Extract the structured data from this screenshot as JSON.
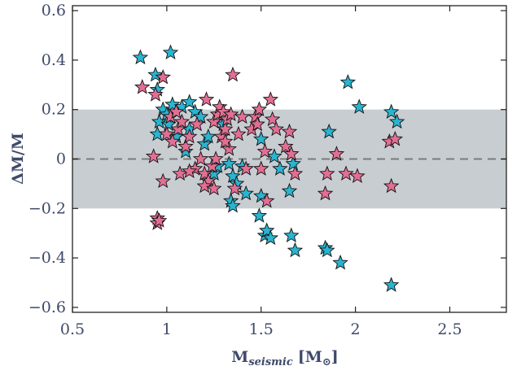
{
  "chart_data": {
    "type": "scatter",
    "title": "",
    "xlabel": {
      "main": "M",
      "sub": "seismic",
      "unit": "[M",
      "sun": "⊙",
      "close": "]"
    },
    "ylabel": "ΔM/M",
    "xlim": [
      0.5,
      2.8
    ],
    "ylim": [
      -0.62,
      0.62
    ],
    "xticks": [
      0.5,
      1,
      1.5,
      2,
      2.5
    ],
    "xtick_labels": [
      "0.5",
      "1",
      "1.5",
      "2",
      "2.5"
    ],
    "yticks": [
      -0.6,
      -0.4,
      -0.2,
      0,
      0.2,
      0.4,
      0.6
    ],
    "ytick_labels": [
      "−0.6",
      "−0.4",
      "−0.2",
      "0",
      "0.2",
      "0.4",
      "0.6"
    ],
    "band": [
      -0.2,
      0.2
    ],
    "reference_line": 0,
    "grid": false,
    "colors": {
      "cyan": "#2ab4cf",
      "pink": "#e26f93",
      "band": "#c8cdd2",
      "zero_line": "#7a7a7a",
      "text": "#3f4a6b"
    },
    "series": [
      {
        "color": "#2ab4cf",
        "points": [
          [
            0.86,
            0.41
          ],
          [
            1.02,
            0.43
          ],
          [
            0.94,
            0.34
          ],
          [
            0.95,
            0.28
          ],
          [
            0.95,
            0.1
          ],
          [
            0.96,
            0.15
          ],
          [
            0.98,
            0.2
          ],
          [
            1.0,
            0.18
          ],
          [
            1.01,
            0.14
          ],
          [
            1.03,
            0.22
          ],
          [
            1.08,
            0.21
          ],
          [
            1.12,
            0.23
          ],
          [
            1.15,
            0.19
          ],
          [
            1.18,
            0.17
          ],
          [
            1.12,
            0.12
          ],
          [
            1.05,
            0.09
          ],
          [
            1.1,
            0.03
          ],
          [
            1.2,
            0.06
          ],
          [
            1.25,
            -0.06
          ],
          [
            1.27,
            -0.03
          ],
          [
            1.3,
            0.14
          ],
          [
            1.33,
            -0.02
          ],
          [
            1.35,
            -0.07
          ],
          [
            1.37,
            -0.1
          ],
          [
            1.4,
            -0.03
          ],
          [
            1.42,
            -0.14
          ],
          [
            1.34,
            -0.17
          ],
          [
            1.35,
            -0.19
          ],
          [
            1.5,
            -0.15
          ],
          [
            1.49,
            -0.23
          ],
          [
            1.52,
            -0.31
          ],
          [
            1.53,
            -0.29
          ],
          [
            1.55,
            -0.32
          ],
          [
            1.57,
            0.01
          ],
          [
            1.6,
            -0.04
          ],
          [
            1.5,
            0.08
          ],
          [
            1.65,
            -0.13
          ],
          [
            1.67,
            -0.02
          ],
          [
            1.68,
            -0.37
          ],
          [
            1.66,
            -0.31
          ],
          [
            1.84,
            -0.36
          ],
          [
            1.85,
            -0.37
          ],
          [
            1.92,
            -0.42
          ],
          [
            1.86,
            0.11
          ],
          [
            1.96,
            0.31
          ],
          [
            2.02,
            0.21
          ],
          [
            2.19,
            0.19
          ],
          [
            2.22,
            0.15
          ],
          [
            2.19,
            -0.51
          ],
          [
            1.22,
            0.09
          ]
        ]
      },
      {
        "color": "#e26f93",
        "points": [
          [
            0.87,
            0.29
          ],
          [
            0.94,
            0.26
          ],
          [
            0.98,
            0.33
          ],
          [
            0.93,
            0.01
          ],
          [
            0.98,
            -0.09
          ],
          [
            0.95,
            -0.24
          ],
          [
            0.95,
            -0.26
          ],
          [
            0.96,
            -0.25
          ],
          [
            1.0,
            0.1
          ],
          [
            1.02,
            0.17
          ],
          [
            1.03,
            0.07
          ],
          [
            1.05,
            0.19
          ],
          [
            1.06,
            0.12
          ],
          [
            1.07,
            -0.06
          ],
          [
            1.1,
            0.05
          ],
          [
            1.12,
            0.09
          ],
          [
            1.15,
            -0.04
          ],
          [
            1.16,
            0.14
          ],
          [
            1.18,
            0.0
          ],
          [
            1.2,
            -0.06
          ],
          [
            1.21,
            0.24
          ],
          [
            1.22,
            -0.09
          ],
          [
            1.24,
            -0.03
          ],
          [
            1.25,
            0.15
          ],
          [
            1.26,
            0.0
          ],
          [
            1.27,
            0.18
          ],
          [
            1.28,
            0.21
          ],
          [
            1.29,
            0.09
          ],
          [
            1.3,
            0.19
          ],
          [
            1.31,
            0.12
          ],
          [
            1.32,
            0.16
          ],
          [
            1.33,
            0.04
          ],
          [
            1.35,
            0.34
          ],
          [
            1.34,
            0.18
          ],
          [
            1.36,
            -0.12
          ],
          [
            1.38,
            0.1
          ],
          [
            1.4,
            0.17
          ],
          [
            1.42,
            -0.04
          ],
          [
            1.45,
            0.12
          ],
          [
            1.47,
            0.17
          ],
          [
            1.48,
            0.14
          ],
          [
            1.49,
            0.2
          ],
          [
            1.5,
            -0.04
          ],
          [
            1.52,
            0.03
          ],
          [
            1.53,
            -0.17
          ],
          [
            1.55,
            0.24
          ],
          [
            1.56,
            0.16
          ],
          [
            1.58,
            0.12
          ],
          [
            1.63,
            0.05
          ],
          [
            1.65,
            0.11
          ],
          [
            1.66,
            0.02
          ],
          [
            1.68,
            -0.06
          ],
          [
            1.84,
            -0.14
          ],
          [
            1.85,
            -0.06
          ],
          [
            1.9,
            0.02
          ],
          [
            1.95,
            -0.06
          ],
          [
            2.01,
            -0.07
          ],
          [
            2.18,
            0.07
          ],
          [
            2.21,
            0.08
          ],
          [
            2.19,
            -0.11
          ],
          [
            1.12,
            -0.05
          ],
          [
            1.2,
            -0.11
          ],
          [
            1.08,
            0.15
          ],
          [
            1.25,
            -0.12
          ],
          [
            1.31,
            0.07
          ]
        ]
      }
    ]
  }
}
